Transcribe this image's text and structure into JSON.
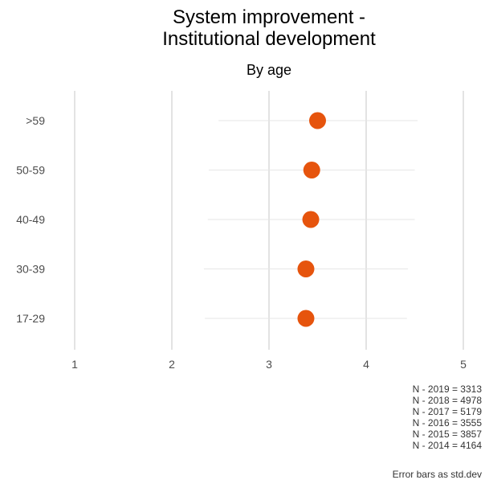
{
  "chart_data": {
    "type": "scatter",
    "title_line1": "System improvement -",
    "title_line2": "Institutional development",
    "subtitle": "By age",
    "xlabel": "",
    "ylabel": "",
    "xlim": [
      1,
      5
    ],
    "xticks": [
      "1",
      "2",
      "3",
      "4",
      "5"
    ],
    "categories": [
      ">59",
      "50-59",
      "40-49",
      "30-39",
      "17-29"
    ],
    "values": [
      3.5,
      3.44,
      3.43,
      3.38,
      3.38
    ],
    "error_low": [
      2.48,
      2.38,
      2.37,
      2.33,
      2.34
    ],
    "error_high": [
      4.53,
      4.5,
      4.5,
      4.43,
      4.42
    ],
    "point_color": "#e6540d",
    "grid": true,
    "legend": "none"
  },
  "caption": {
    "n_lines": [
      "N - 2019 = 3313",
      "N - 2018 = 4978",
      "N - 2017 = 5179",
      "N - 2016 = 3555",
      "N - 2015 = 3857",
      "N - 2014 = 4164"
    ],
    "footnote": "Error bars as std.dev"
  }
}
